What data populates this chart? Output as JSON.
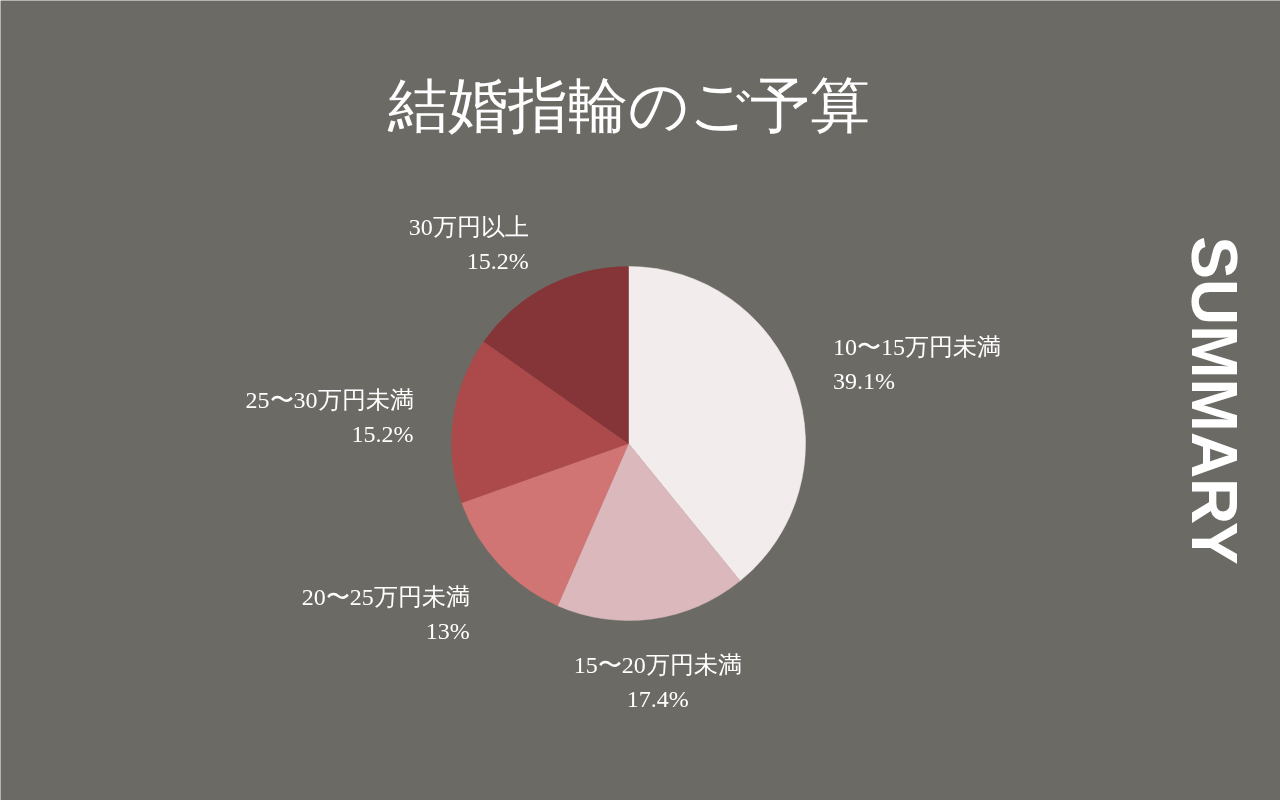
{
  "chart_data": {
    "type": "pie",
    "title": "結婚指輪のご予算",
    "categories": [
      "10〜15万円未満",
      "15〜20万円未満",
      "20〜25万円未満",
      "25〜30万円未満",
      "30万円以上"
    ],
    "values": [
      39.1,
      17.4,
      13,
      15.2,
      15.2
    ],
    "value_labels": [
      "39.1%",
      "17.4%",
      "13%",
      "15.2%",
      "15.2%"
    ],
    "colors": [
      "#f3eced",
      "#dbb8bc",
      "#d17574",
      "#ac4a4b",
      "#853537"
    ],
    "annotations": [
      "SUMMARY"
    ]
  }
}
